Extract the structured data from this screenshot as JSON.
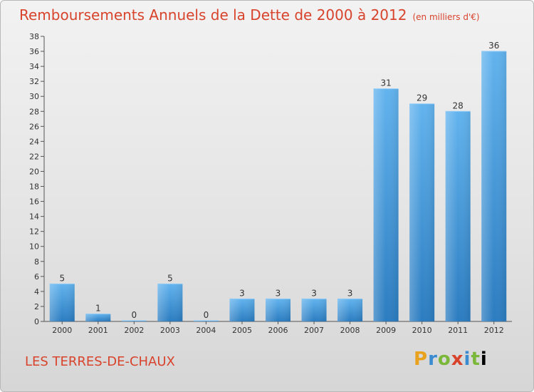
{
  "title": "Remboursements Annuels de la Dette de 2000 à 2012",
  "title_unit": "(en milliers d'€)",
  "town": "LES TERRES-DE-CHAUX",
  "logo": "Proxiti",
  "colors": {
    "title": "#d8432c",
    "bar_top": "#62b3ee",
    "bar_bottom": "#2b7cc0"
  },
  "chart_data": {
    "type": "bar",
    "title": "Remboursements Annuels de la Dette de 2000 à 2012",
    "categories": [
      "2000",
      "2001",
      "2002",
      "2003",
      "2004",
      "2005",
      "2006",
      "2007",
      "2008",
      "2009",
      "2010",
      "2011",
      "2012"
    ],
    "values": [
      5,
      1,
      0,
      5,
      0,
      3,
      3,
      3,
      3,
      31,
      29,
      28,
      36
    ],
    "ylim": [
      0,
      38
    ],
    "yticks": [
      0,
      2,
      4,
      6,
      8,
      10,
      12,
      14,
      16,
      18,
      20,
      22,
      24,
      26,
      28,
      30,
      32,
      34,
      36,
      38
    ],
    "grid": false,
    "legend": "none"
  }
}
